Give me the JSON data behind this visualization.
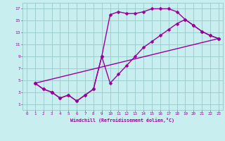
{
  "xlabel": "Windchill (Refroidissement éolien,°C)",
  "xlim": [
    -0.5,
    23.5
  ],
  "ylim": [
    0,
    18
  ],
  "xticks": [
    0,
    1,
    2,
    3,
    4,
    5,
    6,
    7,
    8,
    9,
    10,
    11,
    12,
    13,
    14,
    15,
    16,
    17,
    18,
    19,
    20,
    21,
    22,
    23
  ],
  "yticks": [
    1,
    3,
    5,
    7,
    9,
    11,
    13,
    15,
    17
  ],
  "bg_color": "#c8eef0",
  "line_color": "#990099",
  "grid_color": "#9dcfcf",
  "line1_x": [
    1,
    2,
    3,
    3,
    4,
    5,
    6,
    7,
    8,
    9,
    10,
    11,
    12,
    13,
    14,
    15,
    16,
    17,
    18,
    19,
    20,
    21,
    22,
    23
  ],
  "line1_y": [
    4.5,
    3.5,
    3.0,
    3.0,
    2.0,
    2.5,
    1.5,
    2.5,
    3.5,
    9.0,
    16.0,
    16.5,
    16.2,
    16.2,
    16.5,
    17.0,
    17.0,
    17.0,
    16.5,
    15.2,
    14.2,
    13.2,
    12.5,
    12.0
  ],
  "line2_x": [
    1,
    2,
    3,
    4,
    5,
    6,
    7,
    8,
    9,
    10,
    11,
    12,
    13,
    14,
    15,
    16,
    17,
    18,
    19,
    20,
    21,
    22,
    23
  ],
  "line2_y": [
    4.5,
    3.5,
    3.0,
    2.0,
    2.5,
    1.5,
    2.5,
    3.5,
    9.0,
    4.5,
    6.0,
    7.5,
    9.0,
    10.5,
    11.5,
    12.5,
    13.5,
    14.5,
    15.2,
    14.2,
    13.2,
    12.5,
    12.0
  ],
  "line3_x": [
    1,
    23
  ],
  "line3_y": [
    4.5,
    12.0
  ],
  "marker": "D",
  "markersize": 2.5,
  "linewidth": 1.0
}
